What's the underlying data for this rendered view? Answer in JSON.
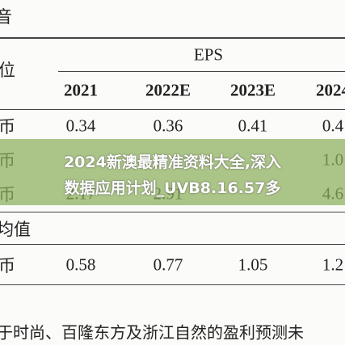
{
  "page_title": "音",
  "unit_label": "位",
  "table": {
    "group_header": "EPS",
    "columns": [
      "2021",
      "2022E",
      "2023E",
      "2024"
    ],
    "rows": [
      {
        "label": "币",
        "cells": [
          "0.34",
          "0.36",
          "0.41",
          "0.4"
        ]
      },
      {
        "label": "币",
        "cells": [
          "",
          "",
          "",
          "1.0"
        ]
      },
      {
        "label": "币",
        "cells": [
          "2.17",
          "2.91",
          "",
          "4.6"
        ]
      }
    ],
    "section_label": "均值",
    "section_rows": [
      {
        "label": "币",
        "cells": [
          "0.58",
          "0.77",
          "1.05",
          "1.2"
        ]
      }
    ]
  },
  "overlay": {
    "line1": "2024新澳最精准资料大全,深入",
    "line2": "数据应用计划_UVB8.16.57多"
  },
  "footnote": "于时尚、百隆东方及浙江自然的盈利预测未"
}
